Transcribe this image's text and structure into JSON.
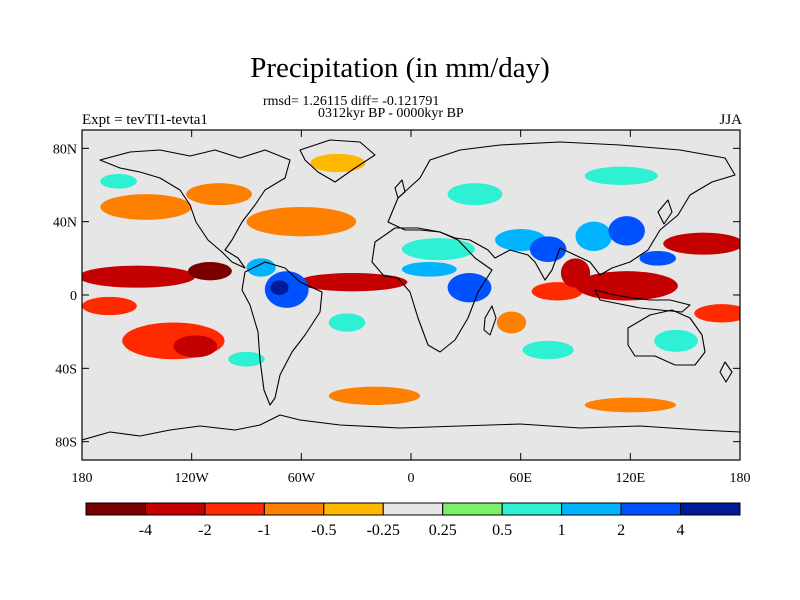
{
  "title": "Precipitation (in mm/day)",
  "stats_line": "rmsd= 1.26115 diff= -0.121791",
  "period_line": "0312kyr BP - 0000kyr BP",
  "experiment_label": "Expt = tevTI1-tevta1",
  "season_label": "JJA",
  "lat_ticks": [
    {
      "lat": 80,
      "label": "80N"
    },
    {
      "lat": 40,
      "label": "40N"
    },
    {
      "lat": 0,
      "label": "0"
    },
    {
      "lat": -40,
      "label": "40S"
    },
    {
      "lat": -80,
      "label": "80S"
    }
  ],
  "lon_ticks": [
    {
      "lon": -180,
      "label": "180"
    },
    {
      "lon": -120,
      "label": "120W"
    },
    {
      "lon": -60,
      "label": "60W"
    },
    {
      "lon": 0,
      "label": "0"
    },
    {
      "lon": 60,
      "label": "60E"
    },
    {
      "lon": 120,
      "label": "120E"
    },
    {
      "lon": 180,
      "label": "180"
    }
  ],
  "colorbar": {
    "colors": [
      "#7a0000",
      "#c40000",
      "#ff2a00",
      "#ff7f00",
      "#ffb800",
      "#e6e6e6",
      "#7cf06a",
      "#2ef0d2",
      "#00b4ff",
      "#0052ff",
      "#001a99"
    ],
    "labels": [
      "-4",
      "-2",
      "-1",
      "-0.5",
      "-0.25",
      "0.25",
      "0.5",
      "1",
      "2",
      "4"
    ]
  },
  "chart_data": {
    "type": "heatmap",
    "title": "Precipitation (in mm/day)",
    "subtitle": "rmsd= 1.26115 diff= -0.121791",
    "period": "0312kyr BP - 0000kyr BP",
    "experiment": "Expt = tevTI1-tevta1",
    "season": "JJA",
    "variable": "precipitation difference (mm/day)",
    "x_range": [
      -180,
      180
    ],
    "y_range": [
      -90,
      90
    ],
    "contour_levels": [
      -4,
      -2,
      -1,
      -0.5,
      -0.25,
      0.25,
      0.5,
      1,
      2,
      4
    ],
    "anomaly_regions": [
      {
        "name": "central-pacific-itcz-dry",
        "lon": -150,
        "lat": 10,
        "rx": 32,
        "ry": 6,
        "value": -3
      },
      {
        "name": "east-pacific-itcz-dry",
        "lon": -110,
        "lat": 13,
        "rx": 12,
        "ry": 5,
        "value": -4.5
      },
      {
        "name": "atlantic-itcz-dry",
        "lon": -32,
        "lat": 7,
        "rx": 30,
        "ry": 5,
        "value": -3
      },
      {
        "name": "south-pacific-dry",
        "lon": -130,
        "lat": -25,
        "rx": 28,
        "ry": 10,
        "value": -1.5
      },
      {
        "name": "south-pacific-dry-core",
        "lon": -118,
        "lat": -28,
        "rx": 12,
        "ry": 6,
        "value": -2.5
      },
      {
        "name": "central-pacific-south-dry",
        "lon": -165,
        "lat": -6,
        "rx": 15,
        "ry": 5,
        "value": -1.5
      },
      {
        "name": "north-atlantic-dry",
        "lon": -60,
        "lat": 40,
        "rx": 30,
        "ry": 8,
        "value": -1
      },
      {
        "name": "north-pacific-dry",
        "lon": -145,
        "lat": 48,
        "rx": 25,
        "ry": 7,
        "value": -0.6
      },
      {
        "name": "canada-dry",
        "lon": -105,
        "lat": 55,
        "rx": 18,
        "ry": 6,
        "value": -0.6
      },
      {
        "name": "greenland-dry",
        "lon": -40,
        "lat": 72,
        "rx": 15,
        "ry": 5,
        "value": -0.4
      },
      {
        "name": "south-atlantic-dry",
        "lon": -20,
        "lat": -55,
        "rx": 25,
        "ry": 5,
        "value": -0.6
      },
      {
        "name": "southern-ocean-dry",
        "lon": 120,
        "lat": -60,
        "rx": 25,
        "ry": 4,
        "value": -0.6
      },
      {
        "name": "madagascar-dry",
        "lon": 55,
        "lat": -15,
        "rx": 8,
        "ry": 6,
        "value": -1
      },
      {
        "name": "indian-ocean-dry",
        "lon": 80,
        "lat": 2,
        "rx": 14,
        "ry": 5,
        "value": -1.5
      },
      {
        "name": "bay-of-bengal-dry",
        "lon": 90,
        "lat": 12,
        "rx": 8,
        "ry": 8,
        "value": -3
      },
      {
        "name": "maritime-continent-dry",
        "lon": 118,
        "lat": 5,
        "rx": 28,
        "ry": 8,
        "value": -3.5
      },
      {
        "name": "west-pacific-north-dry",
        "lon": 160,
        "lat": 28,
        "rx": 22,
        "ry": 6,
        "value": -3
      },
      {
        "name": "west-pacific-south-dry",
        "lon": 170,
        "lat": -10,
        "rx": 15,
        "ry": 5,
        "value": -1.5
      },
      {
        "name": "amazon-wet",
        "lon": -68,
        "lat": 3,
        "rx": 12,
        "ry": 10,
        "value": 3
      },
      {
        "name": "colombia-wet-core",
        "lon": -72,
        "lat": 4,
        "rx": 5,
        "ry": 4,
        "value": 5
      },
      {
        "name": "caribbean-wet",
        "lon": -82,
        "lat": 15,
        "rx": 8,
        "ry": 5,
        "value": 1.5
      },
      {
        "name": "west-africa-wet",
        "lon": 10,
        "lat": 14,
        "rx": 15,
        "ry": 4,
        "value": 1
      },
      {
        "name": "east-africa-wet",
        "lon": 32,
        "lat": 4,
        "rx": 12,
        "ry": 8,
        "value": 2
      },
      {
        "name": "sahara-wet",
        "lon": 15,
        "lat": 25,
        "rx": 20,
        "ry": 6,
        "value": 0.5
      },
      {
        "name": "arabia-wet",
        "lon": 60,
        "lat": 30,
        "rx": 14,
        "ry": 6,
        "value": 1.5
      },
      {
        "name": "south-asia-wet",
        "lon": 75,
        "lat": 25,
        "rx": 10,
        "ry": 7,
        "value": 3
      },
      {
        "name": "tibet-wet",
        "lon": 100,
        "lat": 32,
        "rx": 10,
        "ry": 8,
        "value": 1.5
      },
      {
        "name": "china-wet",
        "lon": 118,
        "lat": 35,
        "rx": 10,
        "ry": 8,
        "value": 2
      },
      {
        "name": "northwest-pacific-wet",
        "lon": 135,
        "lat": 20,
        "rx": 10,
        "ry": 4,
        "value": 2
      },
      {
        "name": "australia-wet",
        "lon": 145,
        "lat": -25,
        "rx": 12,
        "ry": 6,
        "value": 0.6
      },
      {
        "name": "south-indian-wet",
        "lon": 75,
        "lat": -30,
        "rx": 14,
        "ry": 5,
        "value": 0.6
      },
      {
        "name": "siberia-wet",
        "lon": 115,
        "lat": 65,
        "rx": 20,
        "ry": 5,
        "value": 0.5
      },
      {
        "name": "europe-wet",
        "lon": 35,
        "lat": 55,
        "rx": 15,
        "ry": 6,
        "value": 0.5
      },
      {
        "name": "alaska-wet",
        "lon": -160,
        "lat": 62,
        "rx": 10,
        "ry": 4,
        "value": 0.5
      },
      {
        "name": "south-pacific-wet",
        "lon": -90,
        "lat": -35,
        "rx": 10,
        "ry": 4,
        "value": 0.5
      },
      {
        "name": "south-america-east-wet",
        "lon": -35,
        "lat": -15,
        "rx": 10,
        "ry": 5,
        "value": 0.5
      }
    ]
  }
}
